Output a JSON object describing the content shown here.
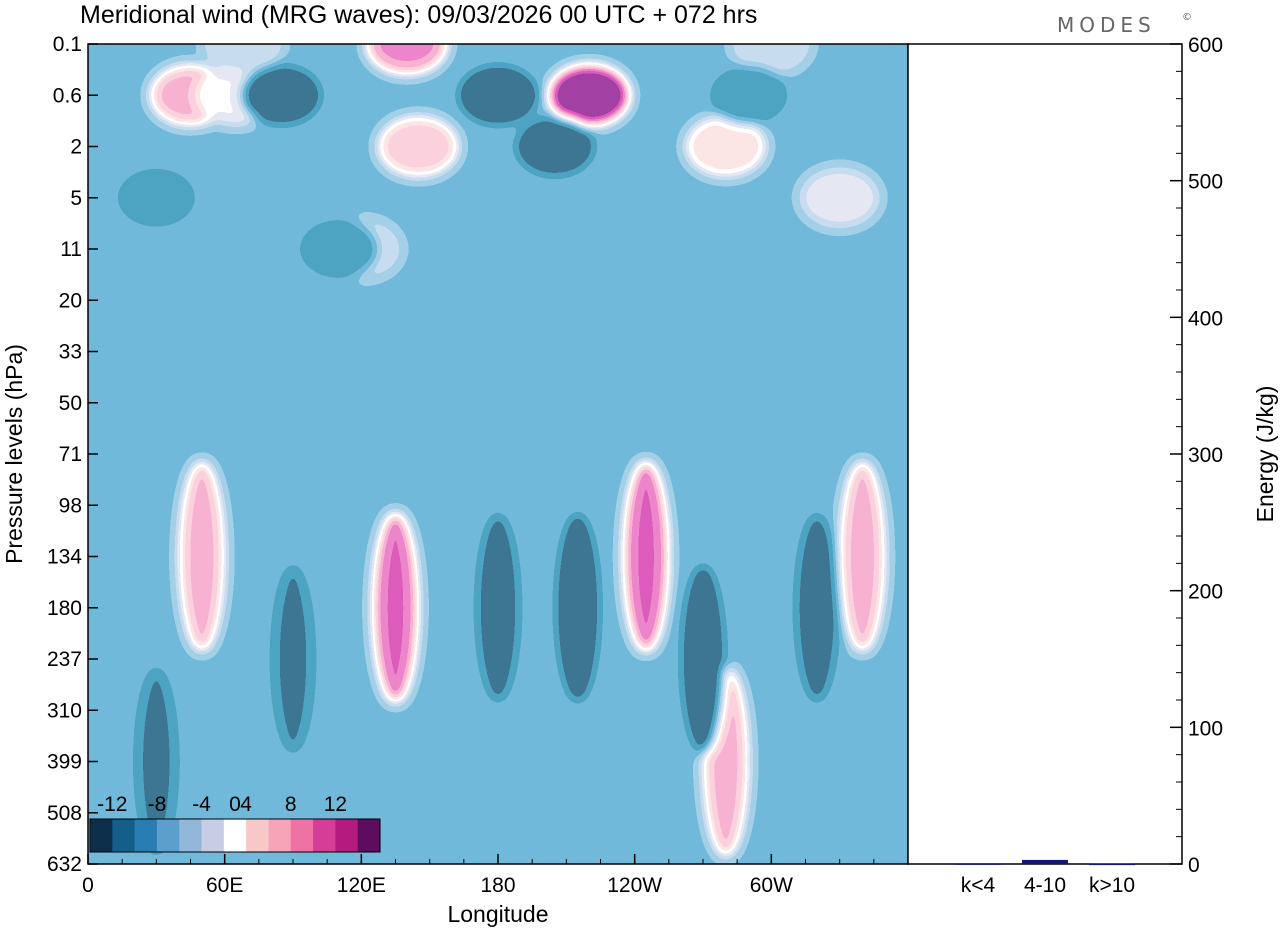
{
  "chart_data": [
    {
      "type": "heatmap",
      "title": "Meridional wind (MRG waves):  09/03/2026  00 UTC  + 072 hrs",
      "xlabel": "Longitude",
      "ylabel": "Pressure levels (hPa)",
      "x_ticks": [
        "0",
        "60E",
        "120E",
        "180",
        "120W",
        "60W"
      ],
      "x_tick_degrees": [
        0,
        60,
        120,
        180,
        240,
        300
      ],
      "xlim": [
        0,
        360
      ],
      "y_ticks": [
        "0.1",
        "0.6",
        "2",
        "5",
        "11",
        "20",
        "33",
        "50",
        "71",
        "98",
        "134",
        "180",
        "237",
        "310",
        "399",
        "508",
        "632"
      ],
      "colorbar": {
        "labels": [
          "-12",
          "-8",
          "-4",
          "0",
          "4",
          "8",
          "12"
        ],
        "levels": [
          -14,
          -12,
          -10,
          -8,
          -6,
          -4,
          -2,
          2,
          4,
          6,
          8,
          10,
          12,
          14
        ],
        "colors": [
          "#0d2f4a",
          "#135f8a",
          "#2a7db3",
          "#5d9fcc",
          "#93b6db",
          "#c8cce4",
          "#ffffff",
          "#f8c8c8",
          "#f7a3b8",
          "#ef72a4",
          "#d63d96",
          "#b41b7e",
          "#5e0d5e"
        ]
      },
      "series": [
        {
          "name": "pos-anomaly",
          "points": [
            {
              "lon": 45,
              "level": "0.6",
              "value": 10
            },
            {
              "lon": 65,
              "level": "0.6",
              "value": 6
            },
            {
              "lon": 68,
              "level": "0.1",
              "value": 4
            },
            {
              "lon": 140,
              "level": "0.1",
              "value": 11
            },
            {
              "lon": 145,
              "level": "2",
              "value": 9
            },
            {
              "lon": 220,
              "level": "0.6",
              "value": 14
            },
            {
              "lon": 280,
              "level": "2",
              "value": 8
            },
            {
              "lon": 300,
              "level": "0.1",
              "value": 4
            },
            {
              "lon": 330,
              "level": "5",
              "value": 5
            },
            {
              "lon": 50,
              "level": "134",
              "value": 10
            },
            {
              "lon": 135,
              "level": "180",
              "value": 12
            },
            {
              "lon": 245,
              "level": "134",
              "value": 12
            },
            {
              "lon": 280,
              "level": "399",
              "value": 10
            },
            {
              "lon": 340,
              "level": "134",
              "value": 10
            },
            {
              "lon": 120,
              "level": "11",
              "value": 4
            }
          ]
        },
        {
          "name": "neg-anomaly",
          "points": [
            {
              "lon": 85,
              "level": "0.6",
              "value": -11
            },
            {
              "lon": 180,
              "level": "0.6",
              "value": -14
            },
            {
              "lon": 205,
              "level": "2",
              "value": -10
            },
            {
              "lon": 290,
              "level": "0.6",
              "value": -4
            },
            {
              "lon": 30,
              "level": "5",
              "value": -4
            },
            {
              "lon": 110,
              "level": "11",
              "value": -4
            },
            {
              "lon": 180,
              "level": "180",
              "value": -8
            },
            {
              "lon": 215,
              "level": "180",
              "value": -12
            },
            {
              "lon": 270,
              "level": "237",
              "value": -11
            },
            {
              "lon": 320,
              "level": "180",
              "value": -8
            },
            {
              "lon": 90,
              "level": "237",
              "value": -6
            },
            {
              "lon": 30,
              "level": "399",
              "value": -6
            }
          ]
        }
      ]
    },
    {
      "type": "bar",
      "ylabel": "Energy (J/kg)",
      "categories": [
        "k<4",
        "4-10",
        "k>10"
      ],
      "values": [
        0.5,
        3,
        0.3
      ],
      "ylim": [
        0,
        600
      ],
      "y_ticks": [
        "0",
        "100",
        "200",
        "300",
        "400",
        "500",
        "600"
      ],
      "y_tick_values": [
        0,
        100,
        200,
        300,
        400,
        500,
        600
      ],
      "bar_color": "#15157a"
    }
  ],
  "logo_text": "MODES",
  "logo_mark": "©"
}
